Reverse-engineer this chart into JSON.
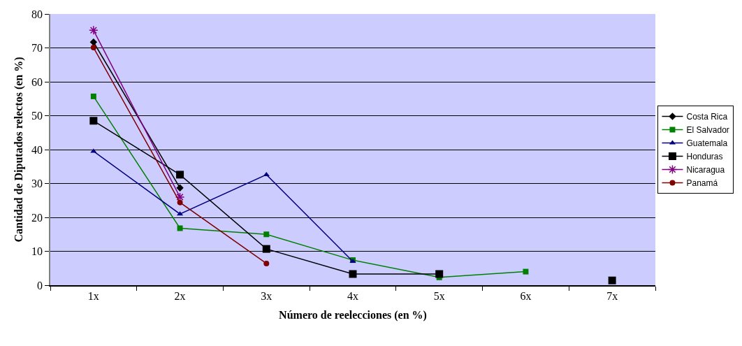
{
  "chart_data": {
    "type": "line",
    "xlabel": "Número de reelecciones (en %)",
    "ylabel": "Cantidad de Diputados relectos (en %)",
    "categories": [
      "1x",
      "2x",
      "3x",
      "4x",
      "5x",
      "6x",
      "7x"
    ],
    "series": [
      {
        "name": "Costa Rica",
        "color": "#000000",
        "marker": "diamond",
        "values": [
          71.7,
          28.7,
          null,
          null,
          null,
          null,
          null
        ]
      },
      {
        "name": "El Salvador",
        "color": "#008000",
        "marker": "square",
        "values": [
          55.7,
          16.8,
          15.0,
          7.4,
          2.3,
          4.0,
          null
        ]
      },
      {
        "name": "Guatemala",
        "color": "#000080",
        "marker": "triangle",
        "values": [
          39.5,
          21.0,
          32.6,
          7.0,
          null,
          null,
          null
        ]
      },
      {
        "name": "Honduras",
        "color": "#000000",
        "marker": "square",
        "values": [
          48.5,
          32.6,
          10.7,
          3.3,
          3.3,
          null,
          1.4
        ]
      },
      {
        "name": "Nicaragua",
        "color": "#800080",
        "marker": "cross",
        "values": [
          75.2,
          26.0,
          null,
          null,
          null,
          null,
          null
        ]
      },
      {
        "name": "Panamá",
        "color": "#800000",
        "marker": "circle",
        "values": [
          70.1,
          24.4,
          6.4,
          null,
          null,
          null,
          null
        ]
      }
    ],
    "ylim": [
      0,
      80
    ],
    "yticks": [
      0,
      10,
      20,
      30,
      40,
      50,
      60,
      70,
      80
    ],
    "grid": "y",
    "legend": "right",
    "line_style": "solid"
  }
}
